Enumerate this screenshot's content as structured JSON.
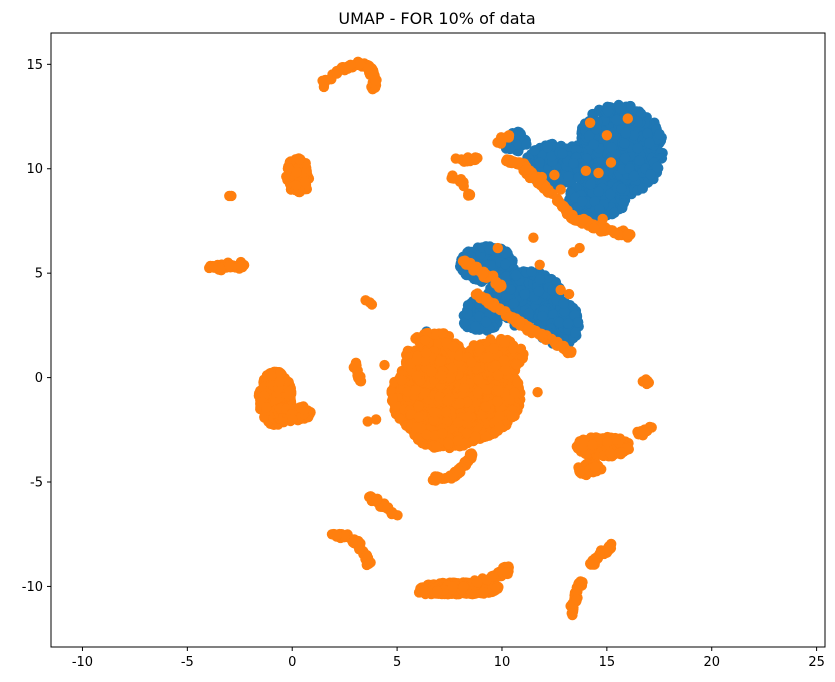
{
  "chart_data": {
    "type": "scatter",
    "title": "UMAP - FOR 10% of data",
    "xlabel": "",
    "ylabel": "",
    "xlim": [
      -11.5,
      25.4
    ],
    "ylim": [
      -12.9,
      16.5
    ],
    "x_ticks": [
      -10,
      -5,
      0,
      5,
      10,
      15,
      20,
      25
    ],
    "y_ticks": [
      -10,
      -5,
      0,
      5,
      10,
      15
    ],
    "grid": false,
    "legend": "none",
    "series": [
      {
        "color": "#1f77b4",
        "clusters": [
          {
            "shape": "blob",
            "cx": 15.6,
            "cy": 10.9,
            "rx": 2.1,
            "ry": 2.2,
            "n": 650
          },
          {
            "shape": "blob",
            "cx": 12.6,
            "cy": 10.2,
            "rx": 1.5,
            "ry": 1.0,
            "n": 250
          },
          {
            "shape": "blob",
            "cx": 14.6,
            "cy": 8.6,
            "rx": 1.4,
            "ry": 0.9,
            "n": 200
          },
          {
            "shape": "blob",
            "cx": 10.6,
            "cy": 11.3,
            "rx": 0.6,
            "ry": 0.5,
            "n": 40
          },
          {
            "shape": "blob",
            "cx": 9.3,
            "cy": 5.4,
            "rx": 1.3,
            "ry": 0.9,
            "n": 230
          },
          {
            "shape": "blob",
            "cx": 11.1,
            "cy": 3.9,
            "rx": 1.8,
            "ry": 1.2,
            "n": 380
          },
          {
            "shape": "blob",
            "cx": 12.7,
            "cy": 2.6,
            "rx": 1.0,
            "ry": 1.1,
            "n": 200
          },
          {
            "shape": "blob",
            "cx": 9.0,
            "cy": 3.0,
            "rx": 1.0,
            "ry": 0.8,
            "n": 90
          },
          {
            "shape": "points",
            "pts": [
              [
                8.3,
                -0.5
              ],
              [
                10.6,
                2.5
              ],
              [
                6.4,
                2.2
              ]
            ]
          }
        ]
      },
      {
        "color": "#ff7f0e",
        "clusters": [
          {
            "shape": "arc",
            "path": [
              [
                1.5,
                14.1
              ],
              [
                2.3,
                14.7
              ],
              [
                3.1,
                15.0
              ],
              [
                3.7,
                14.9
              ],
              [
                3.9,
                14.4
              ],
              [
                3.9,
                13.7
              ]
            ],
            "n": 80
          },
          {
            "shape": "blob",
            "cx": 0.3,
            "cy": 9.7,
            "rx": 0.6,
            "ry": 0.9,
            "n": 70
          },
          {
            "shape": "points",
            "pts": [
              [
                -3.0,
                8.7
              ],
              [
                -2.9,
                8.7
              ]
            ]
          },
          {
            "shape": "arc",
            "path": [
              [
                -4.0,
                5.3
              ],
              [
                -3.0,
                5.3
              ],
              [
                -2.3,
                5.35
              ]
            ],
            "n": 45
          },
          {
            "shape": "arc",
            "path": [
              [
                7.5,
                10.6
              ],
              [
                7.9,
                10.4
              ],
              [
                8.4,
                10.4
              ],
              [
                8.8,
                10.5
              ]
            ],
            "n": 12
          },
          {
            "shape": "arc",
            "path": [
              [
                7.6,
                9.7
              ],
              [
                8.0,
                9.5
              ],
              [
                8.4,
                8.9
              ],
              [
                8.5,
                8.7
              ]
            ],
            "n": 12
          },
          {
            "shape": "arc",
            "path": [
              [
                10.2,
                10.4
              ],
              [
                10.9,
                10.2
              ],
              [
                11.7,
                9.4
              ],
              [
                12.6,
                8.6
              ],
              [
                13.4,
                7.6
              ],
              [
                14.5,
                7.2
              ],
              [
                15.6,
                6.9
              ],
              [
                16.1,
                6.8
              ]
            ],
            "n": 150
          },
          {
            "shape": "arc",
            "path": [
              [
                9.7,
                11.2
              ],
              [
                10.0,
                11.4
              ],
              [
                10.4,
                11.6
              ]
            ],
            "n": 10
          },
          {
            "shape": "points",
            "pts": [
              [
                11.9,
                9.6
              ],
              [
                12.5,
                9.7
              ],
              [
                14.0,
                9.9
              ],
              [
                14.6,
                9.8
              ],
              [
                15.2,
                10.3
              ],
              [
                16.0,
                12.4
              ],
              [
                14.2,
                12.2
              ],
              [
                15.0,
                11.6
              ],
              [
                13.9,
                7.6
              ],
              [
                14.8,
                7.6
              ],
              [
                13.7,
                6.2
              ],
              [
                13.4,
                6.0
              ],
              [
                11.5,
                6.7
              ],
              [
                12.8,
                9.0
              ]
            ]
          },
          {
            "shape": "points",
            "pts": [
              [
                3.5,
                3.7
              ],
              [
                3.7,
                3.6
              ],
              [
                3.8,
                3.5
              ]
            ]
          },
          {
            "shape": "blob",
            "cx": 7.8,
            "cy": -0.9,
            "rx": 3.1,
            "ry": 2.2,
            "n": 1400
          },
          {
            "shape": "blob",
            "cx": 6.8,
            "cy": 0.9,
            "rx": 1.4,
            "ry": 1.3,
            "n": 250
          },
          {
            "shape": "blob",
            "cx": 9.7,
            "cy": 1.0,
            "rx": 1.4,
            "ry": 0.9,
            "n": 150
          },
          {
            "shape": "blob",
            "cx": 7.3,
            "cy": -2.5,
            "rx": 1.7,
            "ry": 0.9,
            "n": 250
          },
          {
            "shape": "arc",
            "path": [
              [
                8.8,
                4.0
              ],
              [
                10.2,
                3.0
              ],
              [
                11.4,
                2.3
              ],
              [
                12.5,
                1.7
              ],
              [
                13.3,
                1.2
              ]
            ],
            "n": 90
          },
          {
            "shape": "arc",
            "path": [
              [
                8.2,
                5.6
              ],
              [
                9.1,
                5.0
              ],
              [
                10.0,
                4.3
              ]
            ],
            "n": 30
          },
          {
            "shape": "points",
            "pts": [
              [
                12.8,
                4.2
              ],
              [
                13.2,
                4.0
              ],
              [
                11.8,
                5.4
              ],
              [
                9.8,
                6.2
              ],
              [
                11.7,
                -0.7
              ]
            ]
          },
          {
            "shape": "blob",
            "cx": -0.8,
            "cy": -1.0,
            "rx": 0.8,
            "ry": 1.3,
            "n": 420
          },
          {
            "shape": "blob",
            "cx": 0.0,
            "cy": -1.7,
            "rx": 0.9,
            "ry": 0.4,
            "n": 120
          },
          {
            "shape": "arc",
            "path": [
              [
                3.0,
                0.7
              ],
              [
                3.1,
                0.2
              ],
              [
                3.2,
                -0.2
              ]
            ],
            "n": 14
          },
          {
            "shape": "points",
            "pts": [
              [
                4.4,
                0.6
              ],
              [
                3.6,
                -2.1
              ],
              [
                4.0,
                -2.0
              ]
            ]
          },
          {
            "shape": "arc",
            "path": [
              [
                6.7,
                -4.9
              ],
              [
                7.7,
                -4.7
              ],
              [
                8.2,
                -4.2
              ],
              [
                8.6,
                -3.6
              ]
            ],
            "n": 45
          },
          {
            "shape": "arc",
            "path": [
              [
                3.6,
                -5.6
              ],
              [
                4.1,
                -6.0
              ],
              [
                4.6,
                -6.3
              ],
              [
                4.9,
                -6.5
              ]
            ],
            "n": 30
          },
          {
            "shape": "arc",
            "path": [
              [
                1.9,
                -7.5
              ],
              [
                2.6,
                -7.6
              ],
              [
                3.2,
                -8.0
              ],
              [
                3.5,
                -8.5
              ],
              [
                3.7,
                -8.9
              ]
            ],
            "n": 45
          },
          {
            "shape": "blob",
            "cx": 8.0,
            "cy": -10.1,
            "rx": 1.9,
            "ry": 0.3,
            "n": 300
          },
          {
            "shape": "arc",
            "path": [
              [
                6.2,
                -10.3
              ],
              [
                7.5,
                -10.2
              ],
              [
                8.6,
                -9.9
              ],
              [
                9.5,
                -9.6
              ],
              [
                10.1,
                -9.3
              ],
              [
                10.3,
                -9.1
              ]
            ],
            "n": 120
          },
          {
            "shape": "arc",
            "path": [
              [
                13.3,
                -11.5
              ],
              [
                13.4,
                -10.8
              ],
              [
                13.6,
                -10.0
              ],
              [
                13.8,
                -9.8
              ]
            ],
            "n": 40
          },
          {
            "shape": "arc",
            "path": [
              [
                14.2,
                -9.0
              ],
              [
                14.7,
                -8.5
              ],
              [
                15.2,
                -8.1
              ]
            ],
            "n": 30
          },
          {
            "shape": "blob",
            "cx": 14.8,
            "cy": -3.3,
            "rx": 1.3,
            "ry": 0.5,
            "n": 150
          },
          {
            "shape": "blob",
            "cx": 14.2,
            "cy": -4.4,
            "rx": 0.6,
            "ry": 0.3,
            "n": 40
          },
          {
            "shape": "arc",
            "path": [
              [
                16.4,
                -2.7
              ],
              [
                16.8,
                -2.6
              ],
              [
                17.1,
                -2.4
              ]
            ],
            "n": 14
          },
          {
            "shape": "arc",
            "path": [
              [
                16.7,
                0.0
              ],
              [
                16.9,
                -0.2
              ],
              [
                17.0,
                -0.3
              ]
            ],
            "n": 10
          }
        ]
      }
    ]
  }
}
